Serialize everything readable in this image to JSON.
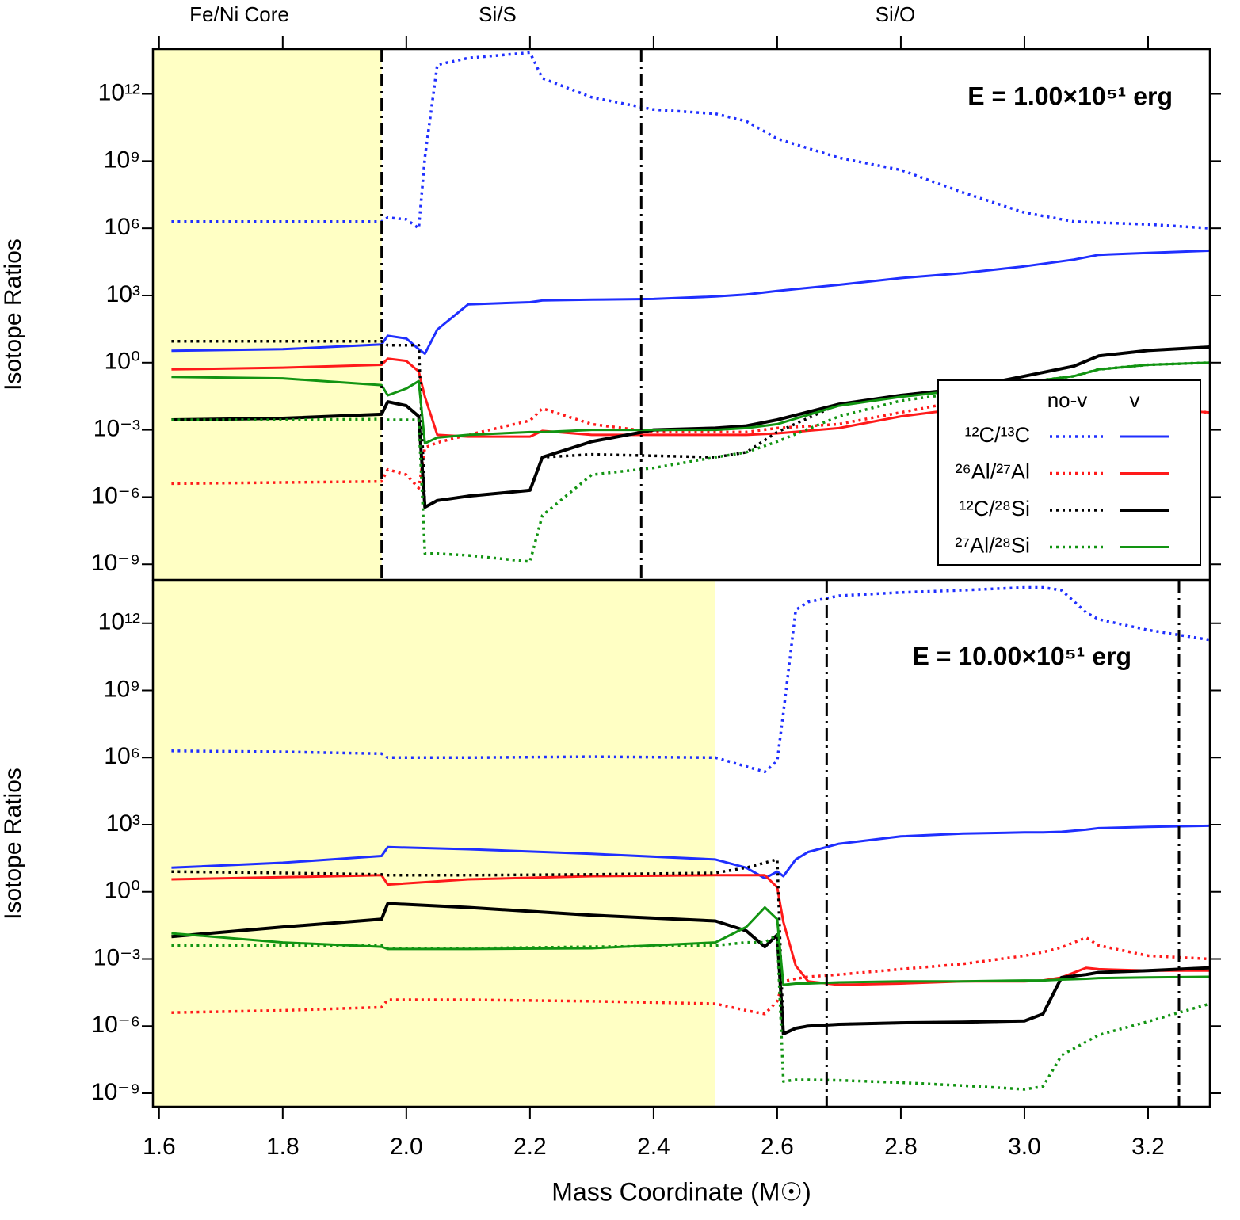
{
  "chart_data": [
    {
      "type": "line",
      "annotation": "E = 1.00×10⁵¹ erg",
      "ylabel": "Isotope Ratios",
      "zone_labels": [
        "Fe/Ni Core",
        "Si/S",
        "Si/O"
      ],
      "xlim": [
        1.59,
        3.3
      ],
      "xticks": [
        1.6,
        1.8,
        {
          "value": 2,
          "label": "2.0"
        },
        2.2,
        2.4,
        2.6,
        2.8,
        {
          "value": 3,
          "label": "3.0"
        },
        3.2
      ],
      "yscale": "log",
      "ylim": [
        2e-10,
        100000000000000.0
      ],
      "yticks": [
        {
          "value": 1e-09,
          "label": "10⁻⁹"
        },
        {
          "value": 1e-06,
          "label": "10⁻⁶"
        },
        {
          "value": 0.001,
          "label": "10⁻³"
        },
        {
          "value": 1,
          "label": "10⁰"
        },
        {
          "value": 1000.0,
          "label": "10³"
        },
        {
          "value": 1000000.0,
          "label": "10⁶"
        },
        {
          "value": 1000000000.0,
          "label": "10⁹"
        },
        {
          "value": 1000000000000.0,
          "label": "10¹²"
        }
      ],
      "shade": [
        1.59,
        1.96
      ],
      "boundaries": [
        1.96,
        2.38
      ],
      "legend": {
        "position": "right",
        "columns": [
          "no-v",
          "v"
        ]
      },
      "x": [
        1.62,
        1.8,
        1.96,
        1.97,
        2.0,
        2.02,
        2.03,
        2.05,
        2.1,
        2.2,
        2.22,
        2.3,
        2.4,
        2.5,
        2.55,
        2.6,
        2.7,
        2.8,
        2.9,
        3.0,
        3.08,
        3.12,
        3.2,
        3.3
      ],
      "series": [
        {
          "name": "¹²C/¹³C",
          "color": "#1f2fff",
          "no-v": [
            2000000.0,
            2000000.0,
            2000000.0,
            3000000.0,
            2500000.0,
            1000000.0,
            1500000000.0,
            20000000000000.0,
            40000000000000.0,
            70000000000000.0,
            5000000000000.0,
            700000000000.0,
            200000000000.0,
            130000000000.0,
            60000000000.0,
            10000000000.0,
            1400000000.0,
            400000000.0,
            40000000.0,
            5000000.0,
            2000000.0,
            1800000.0,
            1500000.0,
            1000000.0
          ],
          "v": [
            3.4,
            4,
            6.5,
            16,
            12,
            4,
            2.5,
            30,
            400,
            500,
            600,
            650,
            700,
            900,
            1100,
            1600,
            3000,
            6000,
            10000.0,
            20000.0,
            40000.0,
            65000.0,
            80000.0,
            100000.0
          ]
        },
        {
          "name": "²⁶Al/²⁷Al",
          "color": "#ff1a1a",
          "no-v": [
            4e-06,
            4.5e-06,
            5e-06,
            1.7e-05,
            1e-05,
            2.5e-06,
            0.00016,
            0.00027,
            0.0006,
            0.0026,
            0.009,
            0.0018,
            0.0008,
            0.0008,
            0.0008,
            0.0012,
            0.0018,
            0.006,
            0.02,
            0.03,
            0.03,
            0.013,
            0.009,
            0.006
          ],
          "v": [
            0.5,
            0.6,
            0.8,
            1.5,
            1.2,
            0.4,
            0.03,
            0.0006,
            0.0005,
            0.0005,
            0.0009,
            0.0006,
            0.0006,
            0.0006,
            0.0006,
            0.0007,
            0.0012,
            0.004,
            0.009,
            0.016,
            0.016,
            0.012,
            0.009,
            0.006
          ]
        },
        {
          "name": "¹²C/²⁸Si",
          "color": "#000000",
          "no-v": [
            9,
            9,
            9,
            6,
            6,
            6,
            3.5e-07,
            7e-07,
            1.1e-06,
            2e-06,
            6e-05,
            8e-05,
            7e-05,
            6e-05,
            0.0001,
            0.0008,
            0.014,
            0.035,
            0.07,
            0.25,
            0.7,
            2,
            3.5,
            5
          ],
          "v": [
            0.0028,
            0.0033,
            0.005,
            0.018,
            0.012,
            0.004,
            3.5e-07,
            7e-07,
            1.1e-06,
            2e-06,
            6e-05,
            0.0003,
            0.001,
            0.0012,
            0.0015,
            0.0028,
            0.014,
            0.035,
            0.07,
            0.25,
            0.7,
            2,
            3.5,
            5
          ]
        },
        {
          "name": "²⁷Al/²⁸Si",
          "color": "#129412",
          "no-v": [
            0.0028,
            0.0028,
            0.003,
            0.0028,
            0.0028,
            0.0028,
            3e-09,
            3e-09,
            2.5e-09,
            1.3e-09,
            1.5e-07,
            1e-05,
            2e-05,
            6e-05,
            0.0001,
            0.0003,
            0.004,
            0.02,
            0.047,
            0.13,
            0.25,
            0.5,
            0.8,
            1
          ],
          "v": [
            0.23,
            0.2,
            0.1,
            0.035,
            0.07,
            0.15,
            0.00025,
            0.00045,
            0.0006,
            0.0008,
            0.0008,
            0.001,
            0.001,
            0.001,
            0.0012,
            0.0018,
            0.012,
            0.03,
            0.06,
            0.13,
            0.25,
            0.5,
            0.8,
            1
          ]
        }
      ]
    },
    {
      "type": "line",
      "annotation": "E = 10.00×10⁵¹ erg",
      "ylabel": "Isotope Ratios",
      "xlabel": "Mass Coordinate (M☉)",
      "xlim": [
        1.59,
        3.3
      ],
      "xticks": [
        1.6,
        1.8,
        {
          "value": 2,
          "label": "2.0"
        },
        2.2,
        2.4,
        2.6,
        2.8,
        {
          "value": 3,
          "label": "3.0"
        },
        3.2
      ],
      "yscale": "log",
      "ylim": [
        2.5e-10,
        80000000000000.0
      ],
      "yticks": [
        {
          "value": 1e-09,
          "label": "10⁻⁹"
        },
        {
          "value": 1e-06,
          "label": "10⁻⁶"
        },
        {
          "value": 0.001,
          "label": "10⁻³"
        },
        {
          "value": 1,
          "label": "10⁰"
        },
        {
          "value": 1000.0,
          "label": "10³"
        },
        {
          "value": 1000000.0,
          "label": "10⁶"
        },
        {
          "value": 1000000000.0,
          "label": "10⁹"
        },
        {
          "value": 1000000000000.0,
          "label": "10¹²"
        }
      ],
      "shade": [
        1.59,
        2.5
      ],
      "boundaries": [
        2.68,
        3.25
      ],
      "x": [
        1.62,
        1.8,
        1.96,
        1.97,
        2.1,
        2.3,
        2.5,
        2.55,
        2.58,
        2.6,
        2.61,
        2.63,
        2.65,
        2.7,
        2.8,
        2.9,
        3.0,
        3.03,
        3.06,
        3.1,
        3.12,
        3.2,
        3.3
      ],
      "series": [
        {
          "color": "#1f2fff",
          "no-v": [
            2000000.0,
            1800000.0,
            1500000.0,
            1000000.0,
            1000000.0,
            1100000.0,
            1000000.0,
            400000.0,
            230000.0,
            700000.0,
            100000000.0,
            4000000000000.0,
            9000000000000.0,
            17000000000000.0,
            24000000000000.0,
            30000000000000.0,
            40000000000000.0,
            40000000000000.0,
            30000000000000.0,
            3000000000000.0,
            1500000000000.0,
            500000000000.0,
            180000000000.0
          ],
          "v": [
            12,
            20,
            40,
            100,
            80,
            50,
            28,
            12,
            4,
            8,
            5,
            28,
            60,
            140,
            300,
            400,
            450,
            450,
            480,
            600,
            700,
            800,
            900
          ]
        },
        {
          "color": "#ff1a1a",
          "no-v": [
            4e-06,
            5e-06,
            7e-06,
            1.5e-05,
            1.5e-05,
            1.3e-05,
            1e-05,
            5e-06,
            3.5e-06,
            1.3e-05,
            0.0001,
            0.00013,
            0.00016,
            0.0002,
            0.00035,
            0.0006,
            0.0014,
            0.002,
            0.0033,
            0.009,
            0.004,
            0.0014,
            0.001
          ],
          "v": [
            3.6,
            4.5,
            5.5,
            2.1,
            3.6,
            5,
            5.5,
            5.5,
            5.5,
            1.6,
            0.045,
            0.0005,
            0.0001,
            7e-05,
            8e-05,
            0.0001,
            0.0001,
            0.00011,
            0.00015,
            0.0004,
            0.00035,
            0.0003,
            0.0003
          ]
        },
        {
          "color": "#000000",
          "no-v": [
            8,
            7,
            6,
            5.5,
            5.5,
            6,
            7,
            12,
            20,
            28,
            4.5e-07,
            8e-07,
            1e-06,
            1.2e-06,
            1.4e-06,
            1.5e-06,
            1.7e-06,
            3.5e-06,
            0.00015,
            0.0002,
            0.00025,
            0.0003,
            0.0004
          ],
          "v": [
            0.01,
            0.027,
            0.06,
            0.3,
            0.2,
            0.09,
            0.05,
            0.018,
            0.0035,
            0.012,
            4.5e-07,
            8e-07,
            1e-06,
            1.2e-06,
            1.4e-06,
            1.5e-06,
            1.7e-06,
            3.5e-06,
            0.00015,
            0.0002,
            0.00025,
            0.0003,
            0.0004
          ]
        },
        {
          "color": "#129412",
          "no-v": [
            0.004,
            0.004,
            0.004,
            0.003,
            0.003,
            0.0035,
            0.004,
            0.0055,
            0.0055,
            0.012,
            3.4e-09,
            4e-09,
            4e-09,
            3.8e-09,
            3e-09,
            2.2e-09,
            1.5e-09,
            2e-09,
            5e-08,
            2e-07,
            4e-07,
            1.6e-06,
            1e-05
          ],
          "v": [
            0.014,
            0.0055,
            0.0035,
            0.0028,
            0.0028,
            0.003,
            0.0055,
            0.027,
            0.2,
            0.06,
            7e-05,
            8e-05,
            8e-05,
            9e-05,
            0.0001,
            0.0001,
            0.00011,
            0.00011,
            0.00012,
            0.00013,
            0.00014,
            0.00015,
            0.00016
          ]
        }
      ]
    }
  ]
}
